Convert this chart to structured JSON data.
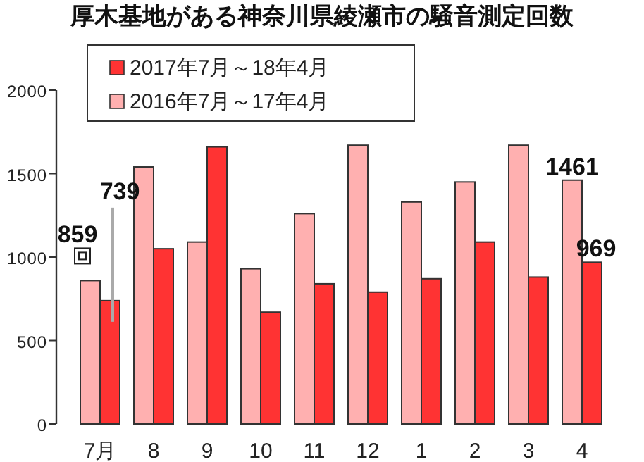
{
  "chart_data": {
    "type": "bar",
    "title": "厚木基地がある神奈川県綾瀬市の騒音測定回数",
    "categories": [
      "7月",
      "8",
      "9",
      "10",
      "11",
      "12",
      "1",
      "2",
      "3",
      "4"
    ],
    "series": [
      {
        "name": "2017年7月～18年4月",
        "color": "#ff3333",
        "values": [
          739,
          1050,
          1660,
          670,
          840,
          790,
          870,
          1090,
          880,
          969
        ],
        "value_labels": [
          "739",
          null,
          null,
          null,
          null,
          null,
          null,
          null,
          null,
          "969"
        ]
      },
      {
        "name": "2016年7月～17年4月",
        "color": "#ffb0b0",
        "values": [
          859,
          1540,
          1090,
          930,
          1260,
          1670,
          1330,
          1450,
          1670,
          1461
        ],
        "value_labels": [
          "859",
          null,
          null,
          null,
          null,
          null,
          null,
          null,
          null,
          "1461"
        ]
      }
    ],
    "ylim": [
      0,
      2000
    ],
    "yticks": [
      0,
      500,
      1000,
      1500,
      2000
    ],
    "grid": false,
    "legend": "top left"
  }
}
